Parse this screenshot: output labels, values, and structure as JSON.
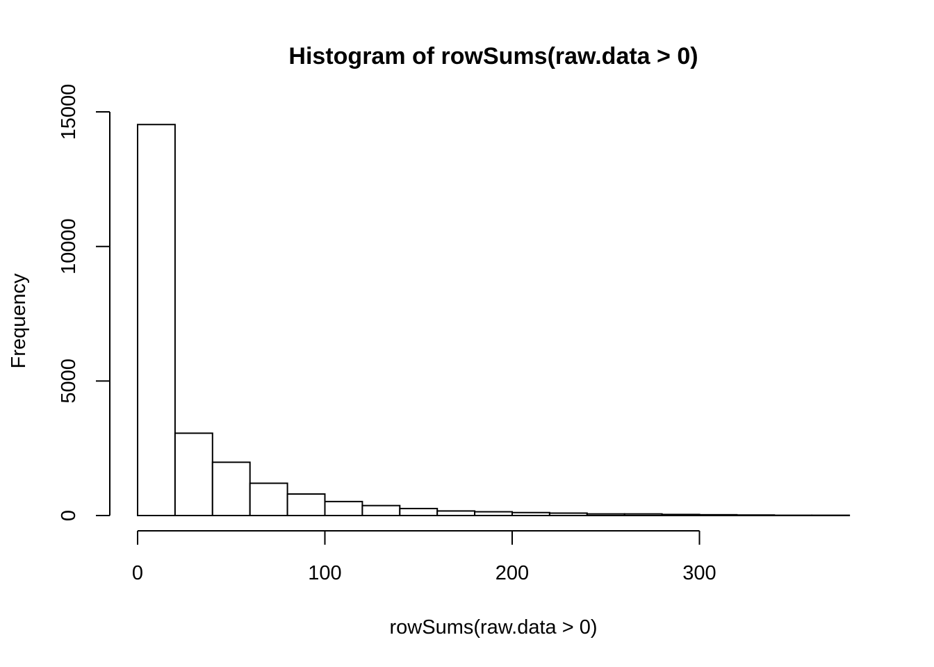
{
  "chart_data": {
    "type": "bar",
    "title": "Histogram of rowSums(raw.data > 0)",
    "xlabel": "rowSums(raw.data > 0)",
    "ylabel": "Frequency",
    "bin_width": 20,
    "bins": [
      {
        "x0": 0,
        "x1": 20,
        "count": 14530
      },
      {
        "x0": 20,
        "x1": 40,
        "count": 3060
      },
      {
        "x0": 40,
        "x1": 60,
        "count": 1980
      },
      {
        "x0": 60,
        "x1": 80,
        "count": 1200
      },
      {
        "x0": 80,
        "x1": 100,
        "count": 800
      },
      {
        "x0": 100,
        "x1": 120,
        "count": 520
      },
      {
        "x0": 120,
        "x1": 140,
        "count": 370
      },
      {
        "x0": 140,
        "x1": 160,
        "count": 260
      },
      {
        "x0": 160,
        "x1": 180,
        "count": 170
      },
      {
        "x0": 180,
        "x1": 200,
        "count": 140
      },
      {
        "x0": 200,
        "x1": 220,
        "count": 110
      },
      {
        "x0": 220,
        "x1": 240,
        "count": 90
      },
      {
        "x0": 240,
        "x1": 260,
        "count": 60
      },
      {
        "x0": 260,
        "x1": 280,
        "count": 60
      },
      {
        "x0": 280,
        "x1": 300,
        "count": 40
      },
      {
        "x0": 300,
        "x1": 320,
        "count": 30
      },
      {
        "x0": 320,
        "x1": 340,
        "count": 20
      },
      {
        "x0": 340,
        "x1": 360,
        "count": 10
      },
      {
        "x0": 360,
        "x1": 380,
        "count": 10
      }
    ],
    "xticks": [
      0,
      100,
      200,
      300
    ],
    "yticks": [
      0,
      5000,
      10000,
      15000
    ],
    "xlim": [
      0,
      380
    ],
    "ylim": [
      0,
      15000
    ],
    "grid": false,
    "legend": "none"
  }
}
